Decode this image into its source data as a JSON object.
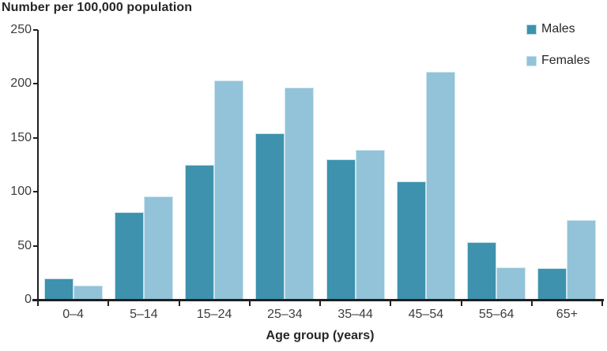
{
  "chart_data": {
    "type": "bar",
    "title": "Number per 100,000 population",
    "xlabel": "Age group (years)",
    "categories": [
      "0–4",
      "5–14",
      "15–24",
      "25–34",
      "35–44",
      "45–54",
      "55–64",
      "65+"
    ],
    "series": [
      {
        "name": "Males",
        "color": "#3E92AD",
        "values": [
          20,
          81,
          125,
          154,
          130,
          110,
          53,
          29
        ]
      },
      {
        "name": "Females",
        "color": "#92C3D8",
        "values": [
          13,
          96,
          203,
          197,
          139,
          211,
          30,
          74
        ]
      }
    ],
    "ylim": [
      0,
      250
    ],
    "yticks": [
      0,
      50,
      100,
      150,
      200,
      250
    ],
    "grid": false,
    "legend_position": "top-right",
    "axis_color": "#1f1f1f",
    "text_color": "#3d3d3d"
  }
}
